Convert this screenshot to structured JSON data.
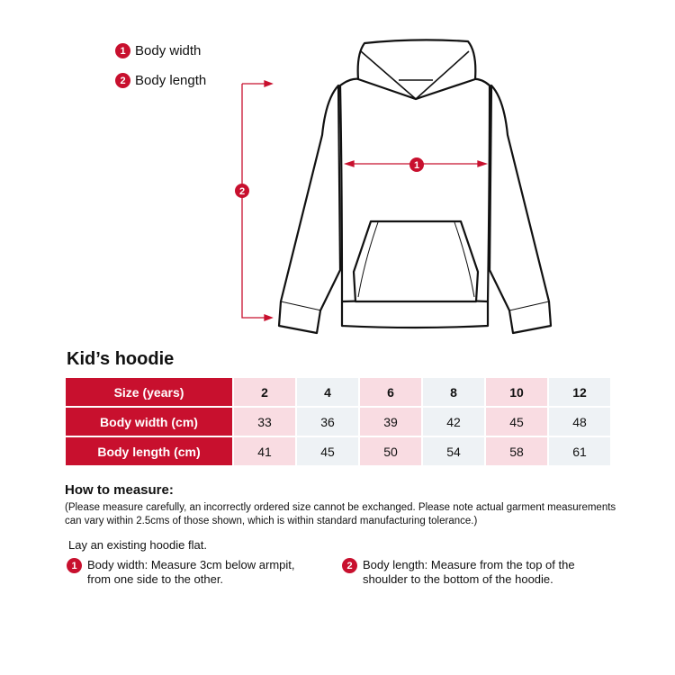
{
  "legend": [
    {
      "num": "1",
      "label": "Body width"
    },
    {
      "num": "2",
      "label": "Body length"
    }
  ],
  "diagram": {
    "width_marker": "1",
    "length_marker": "2",
    "accent_color": "#c8102e"
  },
  "title": "Kid’s hoodie",
  "table": {
    "header_label": "Size (years)",
    "sizes": [
      "2",
      "4",
      "6",
      "8",
      "10",
      "12"
    ],
    "rows": [
      {
        "label": "Body width (cm)",
        "values": [
          "33",
          "36",
          "39",
          "42",
          "45",
          "48"
        ]
      },
      {
        "label": "Body length (cm)",
        "values": [
          "41",
          "45",
          "50",
          "54",
          "58",
          "61"
        ]
      }
    ]
  },
  "how_to": {
    "heading": "How to measure:",
    "note": "(Please measure carefully, an incorrectly ordered size cannot be exchanged. Please note actual garment measurements can vary within 2.5cms of those shown, which is within standard manufacturing tolerance.)",
    "intro": "Lay an existing hoodie flat.",
    "steps": [
      {
        "num": "1",
        "text": "Body width: Measure 3cm below armpit, from one side to the other."
      },
      {
        "num": "2",
        "text": "Body length: Measure from the top of the shoulder to the bottom of the hoodie."
      }
    ]
  }
}
